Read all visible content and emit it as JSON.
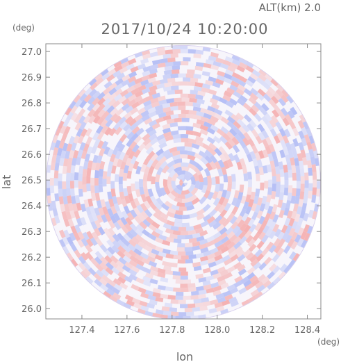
{
  "header": {
    "altitude_label": "ALT(km)  2.0",
    "timestamp": "2017/10/24 10:20:00"
  },
  "chart_data": {
    "type": "heatmap",
    "title": "2017/10/24 10:20:00",
    "subtitle": "ALT(km)  2.0",
    "xlabel": "lon",
    "ylabel": "lat",
    "x_unit": "(deg)",
    "y_unit": "(deg)",
    "xlim": [
      127.24,
      128.46
    ],
    "ylim": [
      25.96,
      27.03
    ],
    "x_ticks": [
      127.4,
      127.6,
      127.8,
      128.0,
      128.2,
      128.4
    ],
    "x_tick_labels": [
      "127.4",
      "127.6",
      "127.8",
      "128.0",
      "128.2",
      "128.4"
    ],
    "y_ticks": [
      26.0,
      26.1,
      26.2,
      26.3,
      26.4,
      26.5,
      26.6,
      26.7,
      26.8,
      26.9,
      27.0
    ],
    "y_tick_labels": [
      "26.0",
      "26.1",
      "26.2",
      "26.3",
      "26.4",
      "26.5",
      "26.6",
      "26.7",
      "26.8",
      "26.9",
      "27.0"
    ],
    "radar_center": [
      127.85,
      26.49
    ],
    "radar_radius_deg_lat": 0.535,
    "colormap": {
      "positive": "#f4a6a6",
      "negative": "#a8b4f4",
      "zero": "#ffffff"
    },
    "grid": false
  }
}
